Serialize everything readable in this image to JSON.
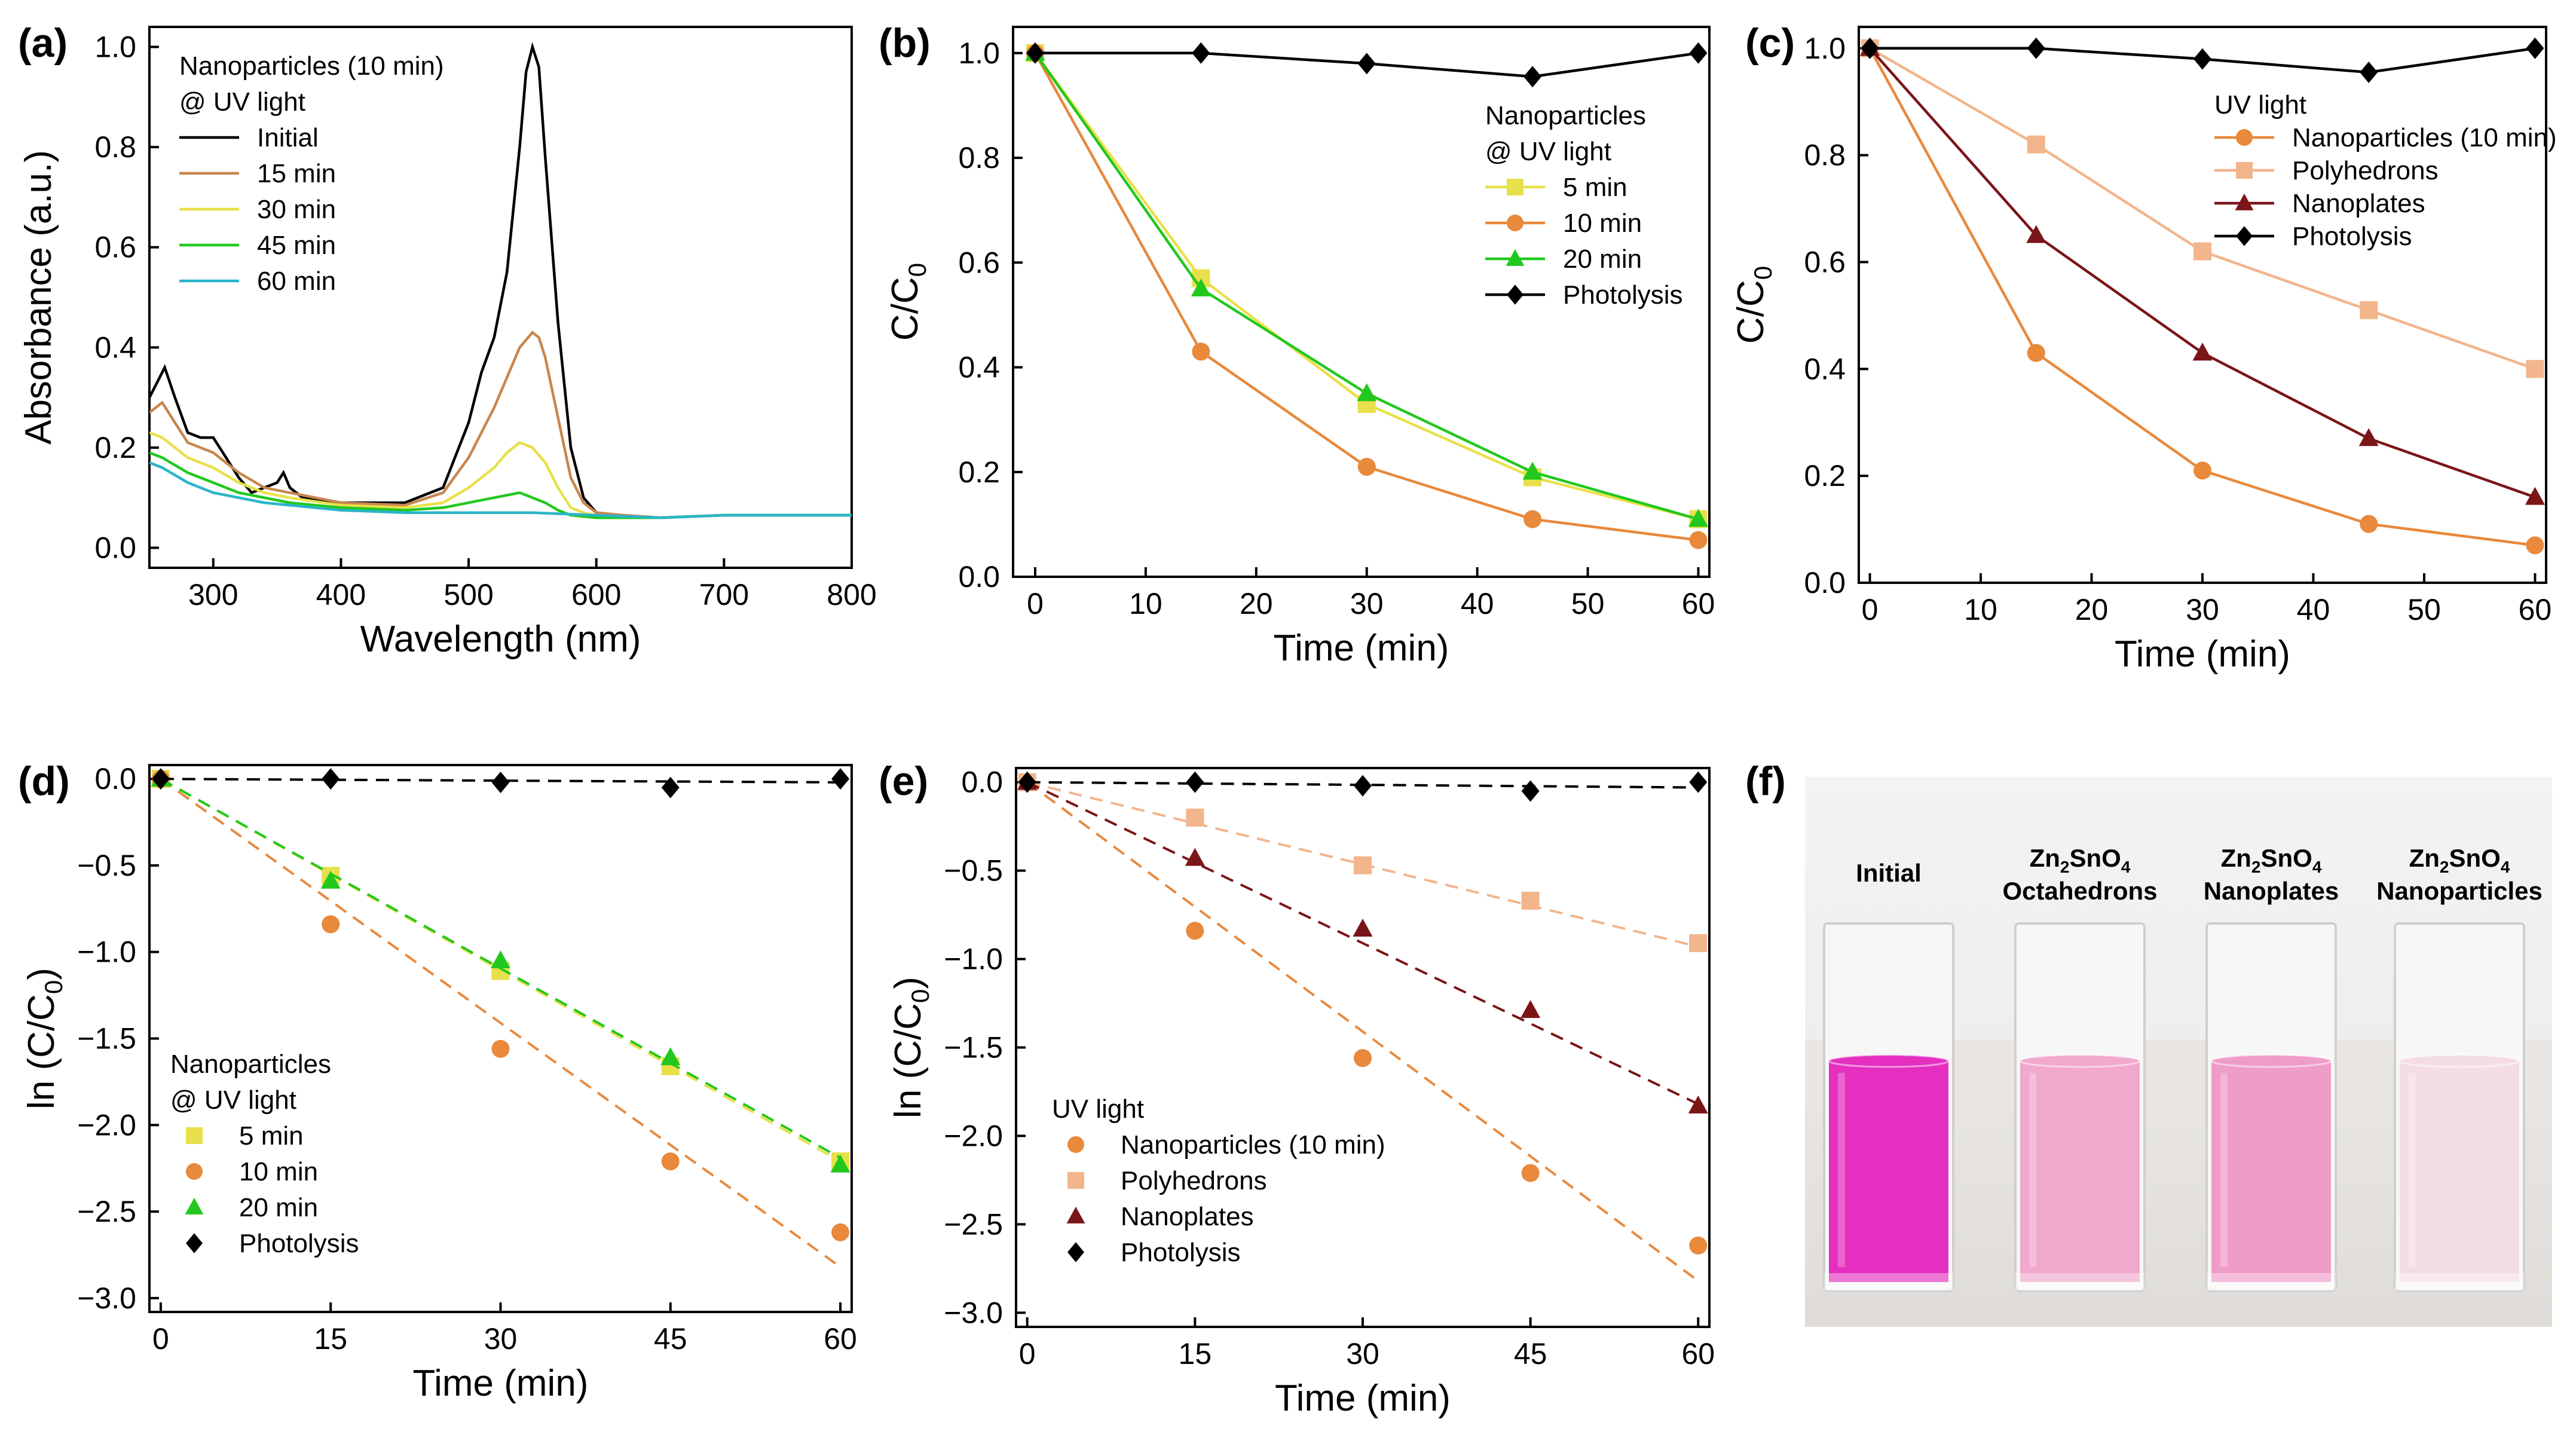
{
  "colors": {
    "black": "#000000",
    "orange": "#E8893C",
    "yellow": "#E8E04A",
    "green": "#22C81E",
    "teal": "#2AB5C9",
    "lightorange": "#F2B58C",
    "darkred": "#7A1518",
    "brown": "#C8874E"
  },
  "photo": {
    "panel_label": "(f)",
    "labels": [
      {
        "line1": "Initial",
        "line2": "",
        "formula": false
      },
      {
        "line1": "Zn2SnO4",
        "line2": "Octahedrons",
        "formula": true
      },
      {
        "line1": "Zn2SnO4",
        "line2": "Nanoplates",
        "formula": true
      },
      {
        "line1": "Zn2SnO4",
        "line2": "Nanoparticles",
        "formula": true
      }
    ],
    "cuvette_colors": [
      "#E52FC0",
      "#F0A8CC",
      "#EF9CC8",
      "#F3DDE3"
    ]
  },
  "chart_data": [
    {
      "panel": "(a)",
      "type": "line",
      "xlabel": "Wavelength (nm)",
      "ylabel": "Absorbance (a.u.)",
      "xlim": [
        250,
        800
      ],
      "ylim": [
        -0.04,
        1.04
      ],
      "xticks": [
        300,
        400,
        500,
        600,
        700,
        800
      ],
      "yticks": [
        0.0,
        0.2,
        0.4,
        0.6,
        0.8,
        1.0
      ],
      "ytick_labels": [
        "0.0",
        "0.2",
        "0.4",
        "0.6",
        "0.8",
        "1.0"
      ],
      "legend_title": [
        "Nanoparticles (10 min)",
        "@ UV light"
      ],
      "series": [
        {
          "name": "Initial",
          "color": "black",
          "x": [
            250,
            262,
            270,
            280,
            290,
            300,
            310,
            320,
            330,
            340,
            350,
            355,
            360,
            370,
            400,
            450,
            480,
            500,
            510,
            520,
            530,
            540,
            545,
            550,
            555,
            560,
            570,
            580,
            590,
            600,
            620,
            650,
            700,
            750,
            800
          ],
          "y": [
            0.3,
            0.36,
            0.3,
            0.23,
            0.22,
            0.22,
            0.18,
            0.14,
            0.11,
            0.12,
            0.13,
            0.15,
            0.12,
            0.1,
            0.09,
            0.09,
            0.12,
            0.25,
            0.35,
            0.42,
            0.55,
            0.8,
            0.95,
            1.0,
            0.96,
            0.78,
            0.45,
            0.2,
            0.1,
            0.07,
            0.065,
            0.06,
            0.065,
            0.065,
            0.065
          ]
        },
        {
          "name": "15 min",
          "color": "brown",
          "x": [
            250,
            260,
            270,
            280,
            300,
            320,
            340,
            360,
            400,
            450,
            480,
            500,
            510,
            520,
            530,
            540,
            550,
            555,
            560,
            570,
            580,
            590,
            600,
            620,
            650,
            700,
            750,
            800
          ],
          "y": [
            0.27,
            0.29,
            0.25,
            0.21,
            0.19,
            0.15,
            0.12,
            0.11,
            0.09,
            0.085,
            0.11,
            0.18,
            0.23,
            0.28,
            0.34,
            0.4,
            0.43,
            0.42,
            0.38,
            0.26,
            0.14,
            0.09,
            0.07,
            0.065,
            0.06,
            0.065,
            0.065,
            0.065
          ]
        },
        {
          "name": "30 min",
          "color": "yellow",
          "x": [
            250,
            260,
            270,
            280,
            300,
            320,
            340,
            360,
            400,
            450,
            480,
            500,
            520,
            530,
            540,
            550,
            560,
            570,
            580,
            590,
            600,
            620,
            650,
            700,
            750,
            800
          ],
          "y": [
            0.23,
            0.22,
            0.2,
            0.18,
            0.16,
            0.13,
            0.11,
            0.1,
            0.085,
            0.08,
            0.09,
            0.12,
            0.16,
            0.19,
            0.21,
            0.2,
            0.17,
            0.12,
            0.08,
            0.07,
            0.065,
            0.06,
            0.06,
            0.065,
            0.065,
            0.065
          ]
        },
        {
          "name": "45 min",
          "color": "green",
          "x": [
            250,
            260,
            280,
            300,
            320,
            340,
            360,
            400,
            450,
            480,
            500,
            520,
            530,
            540,
            550,
            560,
            570,
            580,
            600,
            650,
            700,
            750,
            800
          ],
          "y": [
            0.19,
            0.18,
            0.15,
            0.13,
            0.11,
            0.1,
            0.09,
            0.08,
            0.075,
            0.08,
            0.09,
            0.1,
            0.105,
            0.11,
            0.1,
            0.09,
            0.075,
            0.065,
            0.06,
            0.06,
            0.065,
            0.065,
            0.065
          ]
        },
        {
          "name": "60 min",
          "color": "teal",
          "x": [
            250,
            260,
            280,
            300,
            320,
            340,
            360,
            400,
            450,
            500,
            550,
            600,
            650,
            700,
            750,
            800
          ],
          "y": [
            0.17,
            0.16,
            0.13,
            0.11,
            0.1,
            0.09,
            0.085,
            0.075,
            0.07,
            0.07,
            0.07,
            0.065,
            0.06,
            0.065,
            0.065,
            0.065
          ]
        }
      ]
    },
    {
      "panel": "(b)",
      "type": "line",
      "xlabel": "Time (min)",
      "ylabel": "C/C0",
      "xlim": [
        -2,
        61
      ],
      "ylim": [
        0,
        1.05
      ],
      "xticks": [
        0,
        10,
        20,
        30,
        40,
        50,
        60
      ],
      "yticks": [
        0.0,
        0.2,
        0.4,
        0.6,
        0.8,
        1.0
      ],
      "ytick_labels": [
        "0.0",
        "0.2",
        "0.4",
        "0.6",
        "0.8",
        "1.0"
      ],
      "legend_title": [
        "Nanoparticles",
        "@ UV light"
      ],
      "series": [
        {
          "name": "5 min",
          "color": "yellow",
          "marker": "square",
          "x": [
            0,
            15,
            30,
            45,
            60
          ],
          "y": [
            1.0,
            0.57,
            0.33,
            0.19,
            0.11
          ]
        },
        {
          "name": "10 min",
          "color": "orange",
          "marker": "circle",
          "x": [
            0,
            15,
            30,
            45,
            60
          ],
          "y": [
            1.0,
            0.43,
            0.21,
            0.11,
            0.07
          ]
        },
        {
          "name": "20 min",
          "color": "green",
          "marker": "triangle",
          "x": [
            0,
            15,
            30,
            45,
            60
          ],
          "y": [
            1.0,
            0.55,
            0.35,
            0.2,
            0.11
          ]
        },
        {
          "name": "Photolysis",
          "color": "black",
          "marker": "diamond",
          "x": [
            0,
            15,
            30,
            45,
            60
          ],
          "y": [
            1.0,
            1.0,
            0.98,
            0.955,
            1.0
          ]
        }
      ]
    },
    {
      "panel": "(c)",
      "type": "line",
      "xlabel": "Time (min)",
      "ylabel": "C/C0",
      "xlim": [
        -1,
        61
      ],
      "ylim": [
        0,
        1.04
      ],
      "xticks": [
        0,
        10,
        20,
        30,
        40,
        50,
        60
      ],
      "yticks": [
        0.0,
        0.2,
        0.4,
        0.6,
        0.8,
        1.0
      ],
      "ytick_labels": [
        "0.0",
        "0.2",
        "0.4",
        "0.6",
        "0.8",
        "1.0"
      ],
      "legend_title": [
        "UV light"
      ],
      "series": [
        {
          "name": "Nanoparticles (10 min)",
          "color": "orange",
          "marker": "circle",
          "x": [
            0,
            15,
            30,
            45,
            60
          ],
          "y": [
            1.0,
            0.43,
            0.21,
            0.11,
            0.07
          ]
        },
        {
          "name": "Polyhedrons",
          "color": "lightorange",
          "marker": "square",
          "x": [
            0,
            15,
            30,
            45,
            60
          ],
          "y": [
            1.0,
            0.82,
            0.62,
            0.51,
            0.4
          ]
        },
        {
          "name": "Nanoplates",
          "color": "darkred",
          "marker": "triangle",
          "x": [
            0,
            15,
            30,
            45,
            60
          ],
          "y": [
            1.0,
            0.65,
            0.43,
            0.27,
            0.16
          ]
        },
        {
          "name": "Photolysis",
          "color": "black",
          "marker": "diamond",
          "x": [
            0,
            15,
            30,
            45,
            60
          ],
          "y": [
            1.0,
            1.0,
            0.98,
            0.955,
            1.0
          ]
        }
      ]
    },
    {
      "panel": "(d)",
      "type": "scatter",
      "xlabel": "Time (min)",
      "ylabel": "ln (C/C0)",
      "xlim": [
        -1,
        61
      ],
      "ylim": [
        -3.08,
        0.08
      ],
      "xticks": [
        0,
        15,
        30,
        45,
        60
      ],
      "yticks": [
        0.0,
        -0.5,
        -1.0,
        -1.5,
        -2.0,
        -2.5,
        -3.0
      ],
      "ytick_labels": [
        "0.0",
        "-0.5",
        "-1.0",
        "-1.5",
        "-2.0",
        "-2.5",
        "-3.0"
      ],
      "legend_title": [
        "Nanoparticles",
        "@ UV light"
      ],
      "series": [
        {
          "name": "5 min",
          "color": "yellow",
          "marker": "square",
          "x": [
            0,
            15,
            30,
            45,
            60
          ],
          "y": [
            0,
            -0.56,
            -1.11,
            -1.66,
            -2.21
          ],
          "fit": [
            0,
            -2.21
          ]
        },
        {
          "name": "10 min",
          "color": "orange",
          "marker": "circle",
          "x": [
            0,
            15,
            30,
            45,
            60
          ],
          "y": [
            0,
            -0.84,
            -1.56,
            -2.21,
            -2.62
          ],
          "fit": [
            0,
            -2.82
          ]
        },
        {
          "name": "20 min",
          "color": "green",
          "marker": "triangle",
          "x": [
            0,
            15,
            30,
            45,
            60
          ],
          "y": [
            0,
            -0.59,
            -1.05,
            -1.61,
            -2.23
          ],
          "fit": [
            0,
            -2.19
          ]
        },
        {
          "name": "Photolysis",
          "color": "black",
          "marker": "diamond",
          "x": [
            0,
            15,
            30,
            45,
            60
          ],
          "y": [
            0,
            0,
            -0.02,
            -0.05,
            0
          ],
          "fit": [
            0,
            -0.02
          ]
        }
      ]
    },
    {
      "panel": "(e)",
      "type": "scatter",
      "xlabel": "Time (min)",
      "ylabel": "ln (C/C0)",
      "xlim": [
        -1,
        61
      ],
      "ylim": [
        -3.08,
        0.08
      ],
      "xticks": [
        0,
        15,
        30,
        45,
        60
      ],
      "yticks": [
        0.0,
        -0.5,
        -1.0,
        -1.5,
        -2.0,
        -2.5,
        -3.0
      ],
      "ytick_labels": [
        "0.0",
        "-0.5",
        "-1.0",
        "-1.5",
        "-2.0",
        "-2.5",
        "-3.0"
      ],
      "legend_title": [
        "UV light"
      ],
      "series": [
        {
          "name": "Nanoparticles (10 min)",
          "color": "orange",
          "marker": "circle",
          "x": [
            0,
            15,
            30,
            45,
            60
          ],
          "y": [
            0,
            -0.84,
            -1.56,
            -2.21,
            -2.62
          ],
          "fit": [
            0,
            -2.82
          ]
        },
        {
          "name": "Polyhedrons",
          "color": "lightorange",
          "marker": "square",
          "x": [
            0,
            15,
            30,
            45,
            60
          ],
          "y": [
            0,
            -0.2,
            -0.47,
            -0.67,
            -0.91
          ],
          "fit": [
            0,
            -0.93
          ]
        },
        {
          "name": "Nanoplates",
          "color": "darkred",
          "marker": "triangle",
          "x": [
            0,
            15,
            30,
            45,
            60
          ],
          "y": [
            0,
            -0.43,
            -0.83,
            -1.29,
            -1.83
          ],
          "fit": [
            0,
            -1.82
          ]
        },
        {
          "name": "Photolysis",
          "color": "black",
          "marker": "diamond",
          "x": [
            0,
            15,
            30,
            45,
            60
          ],
          "y": [
            0,
            0,
            -0.02,
            -0.05,
            0
          ],
          "fit": [
            0,
            -0.03
          ]
        }
      ]
    }
  ]
}
